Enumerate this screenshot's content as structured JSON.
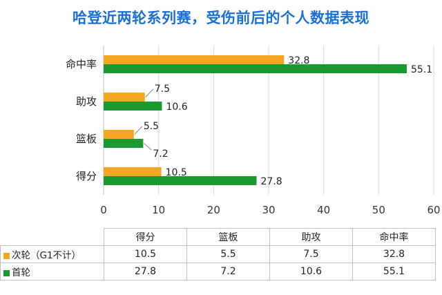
{
  "colors": {
    "orange": "#f5a623",
    "green": "#1a9a2e",
    "title": "#1a6fd6"
  },
  "chart_data": {
    "type": "bar",
    "orientation": "horizontal",
    "title": "哈登近两轮系列赛，受伤前后的个人数据表现",
    "categories": [
      "得分",
      "篮板",
      "助攻",
      "命中率"
    ],
    "series": [
      {
        "name": "次轮（G1不计）",
        "values": [
          10.5,
          5.5,
          7.5,
          32.8
        ]
      },
      {
        "name": "首轮",
        "values": [
          27.8,
          7.2,
          10.6,
          55.1
        ]
      }
    ],
    "xlim": [
      0,
      60
    ],
    "xticks": [
      "0",
      "10",
      "20",
      "30",
      "40",
      "50",
      "60"
    ],
    "grid": true,
    "legend": "table-below",
    "data_labels": {
      "s0": [
        "10.5",
        "5.5",
        "7.5",
        "32.8"
      ],
      "s1": [
        "27.8",
        "7.2",
        "10.6",
        "55.1"
      ]
    }
  },
  "table": {
    "headers": [
      "得分",
      "篮板",
      "助攻",
      "命中率"
    ],
    "rows": [
      {
        "label": "次轮（G1不计）",
        "values": [
          "10.5",
          "5.5",
          "7.5",
          "32.8"
        ]
      },
      {
        "label": "首轮",
        "values": [
          "27.8",
          "7.2",
          "10.6",
          "55.1"
        ]
      }
    ]
  }
}
